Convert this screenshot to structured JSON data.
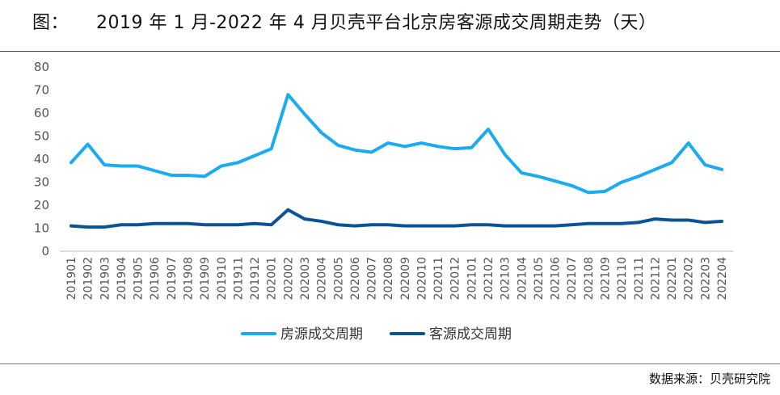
{
  "page": {
    "title_label": "图：",
    "title_text": "2019 年 1 月-2022 年 4 月贝壳平台北京房客源成交周期走势（天）",
    "source": "数据来源：贝壳研究院"
  },
  "colors": {
    "series1": "#1aabf2",
    "series2": "#0b5394"
  },
  "chart_data": {
    "type": "line",
    "title": "2019 年 1 月-2022 年 4 月贝壳平台北京房客源成交周期走势（天）",
    "xlabel": "",
    "ylabel": "",
    "ylim": [
      0,
      80
    ],
    "yticks": [
      0,
      10,
      20,
      30,
      40,
      50,
      60,
      70,
      80
    ],
    "grid": false,
    "legend": "bottom",
    "x": [
      "201901",
      "201902",
      "201903",
      "201904",
      "201905",
      "201906",
      "201907",
      "201908",
      "201909",
      "201910",
      "201911",
      "201912",
      "202001",
      "202002",
      "202003",
      "202004",
      "202005",
      "202006",
      "202007",
      "202008",
      "202009",
      "202010",
      "202011",
      "202012",
      "202101",
      "202102",
      "202103",
      "202104",
      "202105",
      "202106",
      "202107",
      "202108",
      "202109",
      "202110",
      "202111",
      "202112",
      "202201",
      "202202",
      "202203",
      "202204"
    ],
    "series": [
      {
        "name": "房源成交周期",
        "values": [
          38.5,
          46.5,
          37.5,
          37,
          37,
          35,
          33,
          33,
          32.5,
          37,
          38.5,
          41.5,
          44.5,
          68,
          59.5,
          51.5,
          46,
          44,
          43,
          47,
          45.5,
          47,
          45.5,
          44.5,
          45,
          53,
          42,
          34,
          32.5,
          30.5,
          28.5,
          25.5,
          26,
          30,
          32.5,
          35.5,
          38.5,
          47,
          37.5,
          35.5
        ]
      },
      {
        "name": "客源成交周期",
        "values": [
          11,
          10.5,
          10.5,
          11.5,
          11.5,
          12,
          12,
          12,
          11.5,
          11.5,
          11.5,
          12,
          11.5,
          18,
          14,
          13,
          11.5,
          11,
          11.5,
          11.5,
          11,
          11,
          11,
          11,
          11.5,
          11.5,
          11,
          11,
          11,
          11,
          11.5,
          12,
          12,
          12,
          12.5,
          14,
          13.5,
          13.5,
          12.5,
          13
        ]
      }
    ]
  }
}
